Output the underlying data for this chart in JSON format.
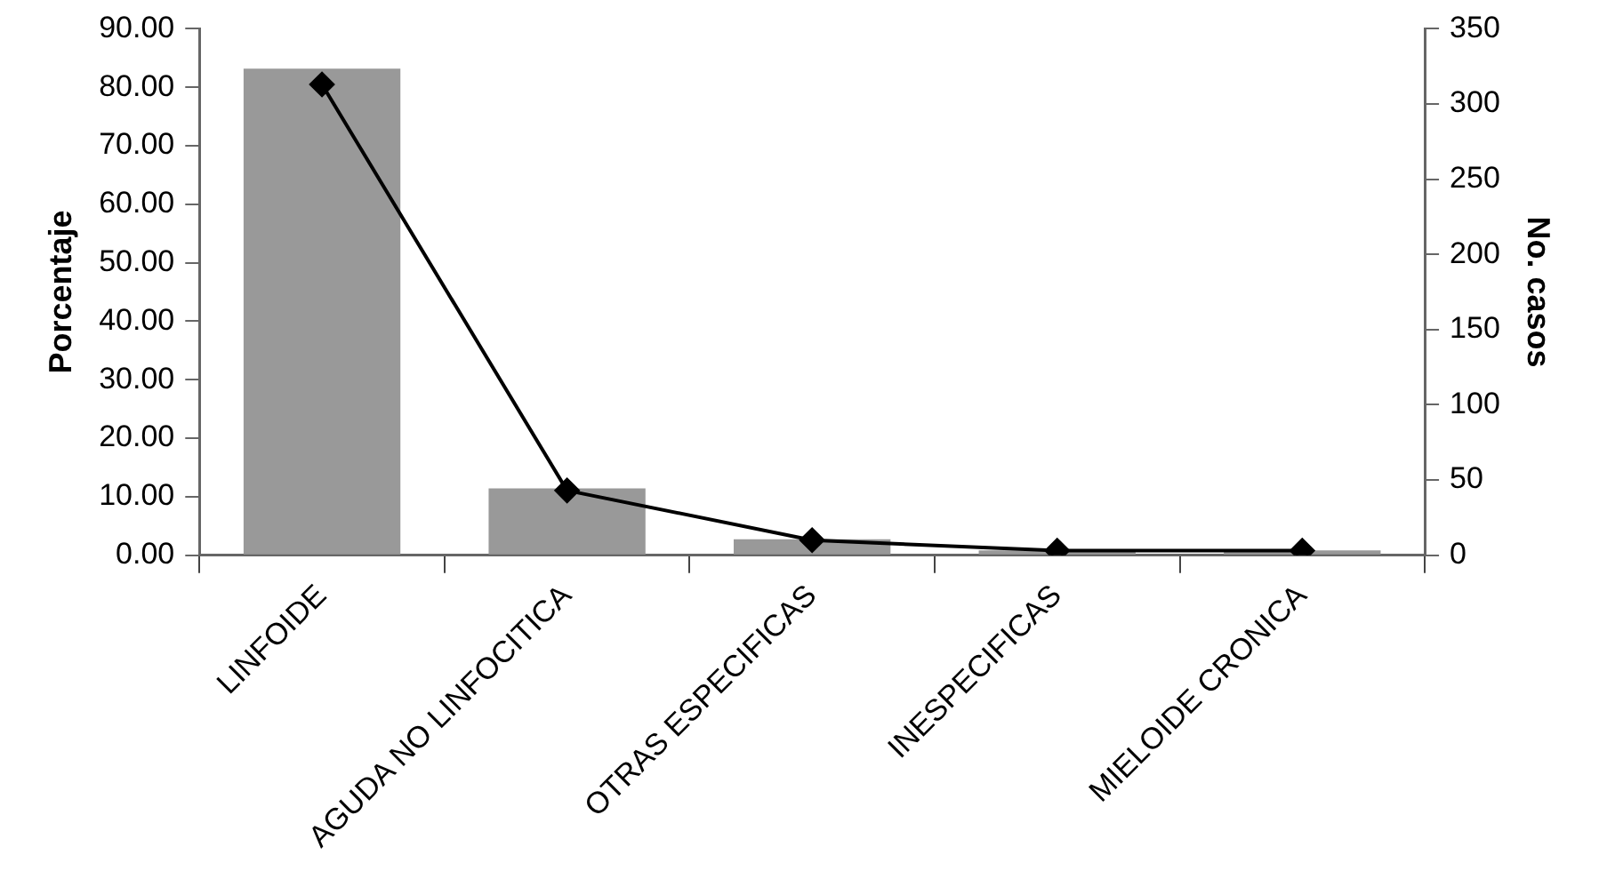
{
  "chart_data": {
    "type": "bar",
    "ylabel": "Porcentaje",
    "y2label": "No. casos",
    "categories": [
      "LINFOIDE",
      "AGUDA NO LINFOCITICA",
      "OTRAS ESPECIFICAS",
      "INESPECIFICAS",
      "MIELOIDE CRONICA"
    ],
    "series": [
      {
        "color": "#999999",
        "values": [
          83.2,
          11.4,
          2.7,
          0.8,
          0.8
        ]
      },
      {
        "type": "line",
        "axis": "y2",
        "color": "#000000",
        "values": [
          313,
          43,
          10,
          3,
          3
        ]
      }
    ],
    "ylim": [
      0,
      90
    ],
    "yticks": [
      {
        "value": 0,
        "label": "0.00"
      },
      {
        "value": 10,
        "label": "10.00"
      },
      {
        "value": 20,
        "label": "20.00"
      },
      {
        "value": 30,
        "label": "30.00"
      },
      {
        "value": 40,
        "label": "40.00"
      },
      {
        "value": 50,
        "label": "50.00"
      },
      {
        "value": 60,
        "label": "60.00"
      },
      {
        "value": 70,
        "label": "70.00"
      },
      {
        "value": 80,
        "label": "80.00"
      },
      {
        "value": 90,
        "label": "90.00"
      }
    ],
    "y2lim": [
      0,
      350
    ],
    "y2ticks": [
      0,
      50,
      100,
      150,
      200,
      250,
      300,
      350
    ],
    "grid": false,
    "legend": false,
    "marker": "diamond",
    "line_style": "solid"
  }
}
